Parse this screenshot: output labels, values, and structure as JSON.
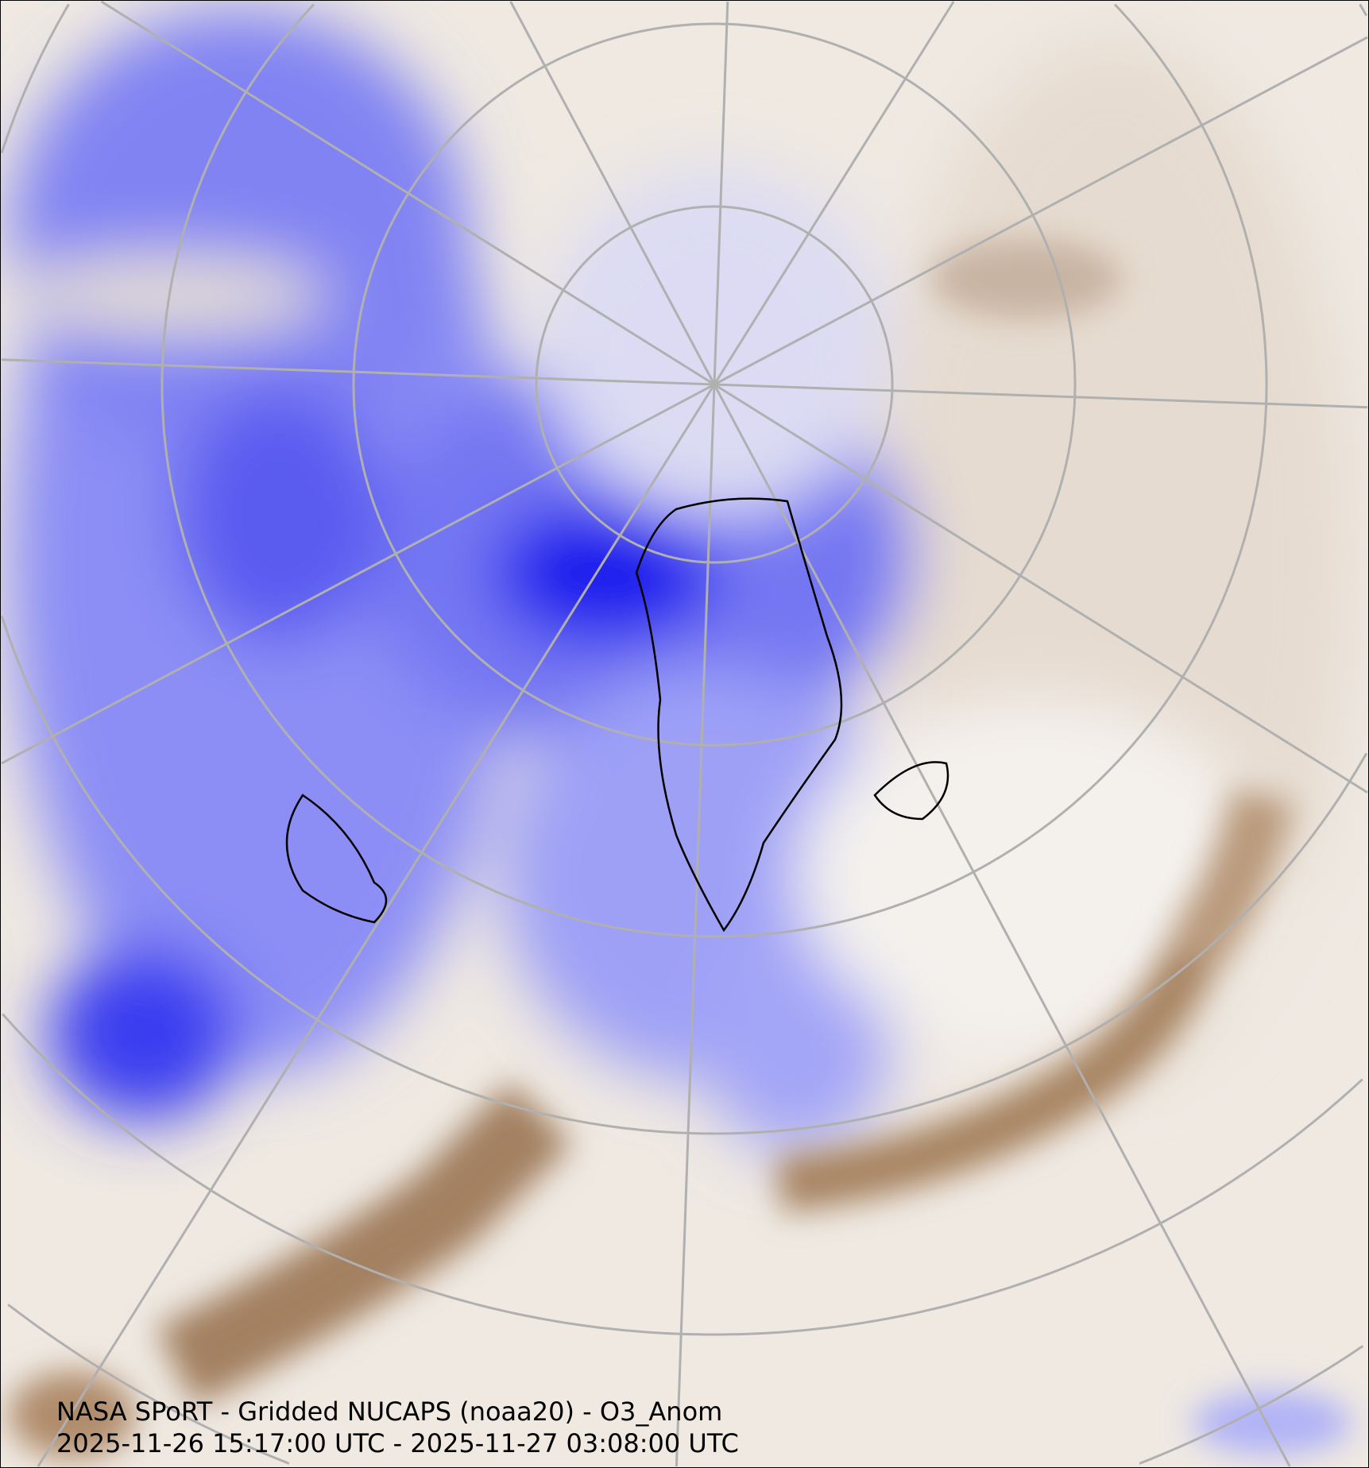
{
  "map": {
    "title": "NASA SPoRT - Gridded NUCAPS (noaa20) - O3_Anom",
    "time_range": "2025-11-26 15:17:00 UTC - 2025-11-27 03:08:00 UTC",
    "projection": "north-polar-stereographic",
    "colors": {
      "negative_anomaly": "#3a3cf0",
      "weak_negative": "#b8baf8",
      "neutral": "#f6f3ef",
      "positive_anomaly": "#a07a58",
      "graticule": "#b0b0b0",
      "coastline": "#000000"
    }
  }
}
